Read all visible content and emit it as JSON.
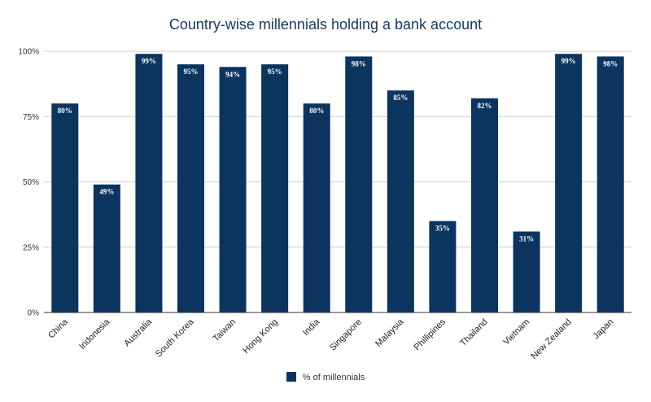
{
  "chart_data": {
    "type": "bar",
    "title": "Country-wise millennials holding a bank account",
    "categories": [
      "China",
      "Indonesia",
      "Australia",
      "South Korea",
      "Taiwan",
      "Hong Kong",
      "India",
      "Singapore",
      "Malaysia",
      "Phillipines",
      "Thailand",
      "Vietnam",
      "New Zealand",
      "Japan"
    ],
    "series": [
      {
        "name": "% of millennials",
        "values": [
          80,
          49,
          99,
          95,
          94,
          95,
          80,
          98,
          85,
          35,
          82,
          31,
          99,
          98
        ]
      }
    ],
    "data_labels": [
      "80%",
      "49%",
      "99%",
      "95%",
      "94%",
      "95%",
      "80%",
      "98%",
      "85%",
      "35%",
      "82%",
      "31%",
      "99%",
      "98%"
    ],
    "ylim": [
      0,
      100
    ],
    "yticks": [
      0,
      25,
      50,
      75,
      100
    ],
    "ytick_labels": [
      "0%",
      "25%",
      "50%",
      "75%",
      "100%"
    ],
    "grid": true,
    "legend_position": "bottom",
    "bar_color": "#0b345e",
    "xlabel": "",
    "ylabel": ""
  }
}
